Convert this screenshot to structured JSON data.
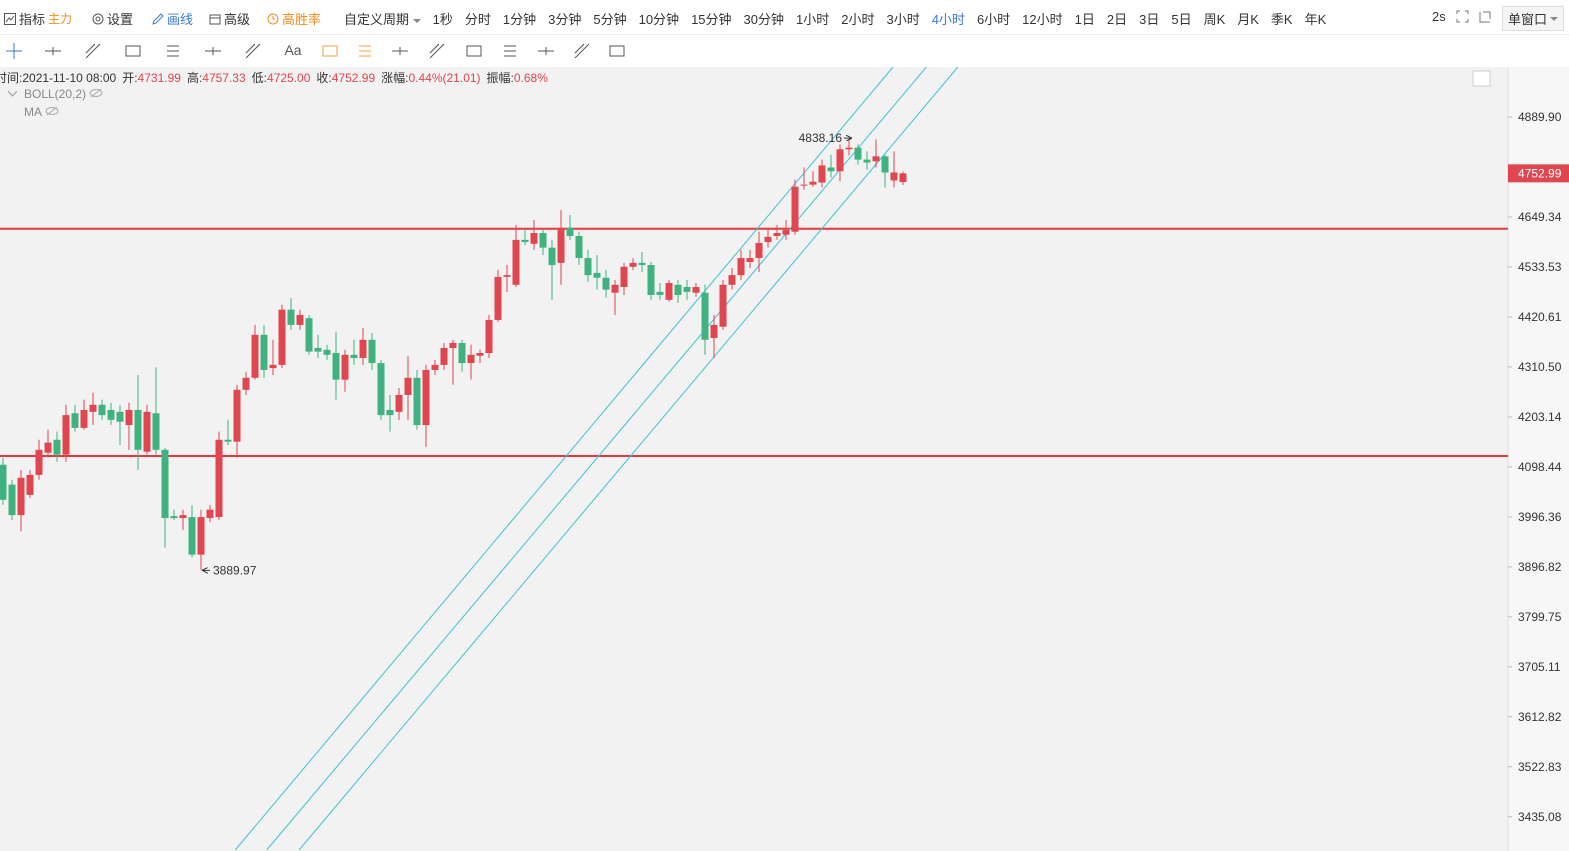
{
  "toolbar": {
    "indicator": "指标",
    "main": "主力",
    "settings": "设置",
    "draw": "画线",
    "advanced": "高级",
    "win_rate": "高胜率",
    "custom_period": "自定义周期",
    "periods": [
      "1秒",
      "分时",
      "1分钟",
      "3分钟",
      "5分钟",
      "10分钟",
      "15分钟",
      "30分钟",
      "1小时",
      "2小时",
      "3小时",
      "4小时",
      "6小时",
      "12小时",
      "1日",
      "2日",
      "3日",
      "5日",
      "周K",
      "月K",
      "季K",
      "年K"
    ],
    "active_period": "4小时",
    "refresh": "2s",
    "window": "单窗口"
  },
  "drawing_tools": {
    "text_tool": "Aa"
  },
  "info_bar": [
    {
      "label": "时间:",
      "value": "2021-11-10 08:00"
    },
    {
      "label": "开:",
      "value": "4731.99"
    },
    {
      "label": "高:",
      "value": "4757.33"
    },
    {
      "label": "低:",
      "value": "4725.00"
    },
    {
      "label": "收:",
      "value": "4752.99"
    },
    {
      "label": "涨幅:",
      "value": "0.44%(21.01)"
    },
    {
      "label": "振幅:",
      "value": "0.68%"
    }
  ],
  "indicators": [
    "BOLL(20,2)",
    "MA"
  ],
  "chart_data": {
    "type": "candlestick",
    "log_scale": true,
    "up_color": "#e0464f",
    "down_color": "#3fb27f",
    "open": [
      4103,
      4062,
      4000,
      4041,
      4082,
      4128,
      4155,
      4124,
      4211,
      4180,
      4214,
      4229,
      4218,
      4214,
      4186,
      4218,
      4130,
      4211,
      4134,
      3998,
      3994,
      3996,
      3921,
      3994,
      3996,
      4155,
      4151,
      4261,
      4287,
      4381,
      4308,
      4315,
      4437,
      4403,
      4418,
      4352,
      4348,
      4341,
      4283,
      4337,
      4330,
      4370,
      4319,
      4218,
      4214,
      4250,
      4287,
      4186,
      4304,
      4315,
      4352,
      4363,
      4319,
      4335,
      4341,
      4414,
      4511,
      4493,
      4596,
      4587,
      4612,
      4578,
      4543,
      4624,
      4605,
      4554,
      4520,
      4509,
      4475,
      4488,
      4534,
      4543,
      4538,
      4477,
      4459,
      4493,
      4488,
      4475,
      4475,
      4374,
      4399,
      4493,
      4515,
      4545,
      4554,
      4591,
      4605,
      4608,
      4615,
      4724,
      4726,
      4731,
      4767,
      4758,
      4811,
      4815,
      4786,
      4782,
      4794,
      4736,
      4731.99
    ],
    "close": [
      4031,
      4000,
      4076,
      4082,
      4134,
      4149,
      4124,
      4207,
      4180,
      4218,
      4229,
      4207,
      4197,
      4193,
      4218,
      4134,
      4214,
      4134,
      3994,
      3994,
      4000,
      3921,
      3996,
      4011,
      4155,
      4151,
      4261,
      4287,
      4381,
      4304,
      4315,
      4437,
      4403,
      4425,
      4344,
      4344,
      4337,
      4283,
      4337,
      4330,
      4370,
      4319,
      4207,
      4207,
      4250,
      4287,
      4186,
      4304,
      4315,
      4352,
      4363,
      4319,
      4337,
      4341,
      4414,
      4511,
      4515,
      4596,
      4591,
      4612,
      4578,
      4538,
      4624,
      4605,
      4554,
      4515,
      4509,
      4482,
      4493,
      4534,
      4543,
      4538,
      4470,
      4470,
      4497,
      4470,
      4477,
      4488,
      4370,
      4403,
      4493,
      4515,
      4554,
      4554,
      4589,
      4603,
      4612,
      4619,
      4721,
      4726,
      4733,
      4772,
      4758,
      4811,
      4815,
      4786,
      4779,
      4794,
      4755,
      4755,
      4752.99
    ],
    "high": [
      4117,
      4072,
      4092,
      4092,
      4155,
      4176,
      4172,
      4229,
      4229,
      4240,
      4255,
      4240,
      4233,
      4229,
      4233,
      4293,
      4229,
      4310,
      4138,
      4011,
      4011,
      4020,
      4011,
      4020,
      4172,
      4197,
      4272,
      4300,
      4403,
      4403,
      4370,
      4448,
      4463,
      4437,
      4425,
      4381,
      4359,
      4388,
      4348,
      4370,
      4396,
      4385,
      4326,
      4250,
      4265,
      4334,
      4304,
      4315,
      4326,
      4363,
      4370,
      4370,
      4359,
      4348,
      4425,
      4527,
      4538,
      4631,
      4619,
      4642,
      4619,
      4596,
      4666,
      4654,
      4615,
      4573,
      4561,
      4527,
      4504,
      4543,
      4554,
      4568,
      4545,
      4497,
      4504,
      4504,
      4504,
      4497,
      4493,
      4425,
      4504,
      4531,
      4573,
      4573,
      4615,
      4624,
      4631,
      4642,
      4738,
      4767,
      4758,
      4786,
      4798,
      4823,
      4838.16,
      4823,
      4806,
      4835,
      4798,
      4806,
      4757.33
    ],
    "low": [
      4021,
      3990,
      3967,
      4035,
      4072,
      4118,
      4109,
      4109,
      4172,
      4176,
      4186,
      4197,
      4186,
      4144,
      4134,
      4092,
      4124,
      4124,
      3935,
      3990,
      3970,
      3915,
      3889.97,
      3986,
      3990,
      4144,
      4118,
      4250,
      4283,
      4287,
      4293,
      4308,
      4392,
      4392,
      4337,
      4330,
      4326,
      4240,
      4257,
      4315,
      4315,
      4304,
      4197,
      4172,
      4197,
      4197,
      4176,
      4140,
      4293,
      4304,
      4272,
      4300,
      4283,
      4319,
      4330,
      4410,
      4477,
      4488,
      4584,
      4573,
      4561,
      4459,
      4493,
      4596,
      4538,
      4500,
      4482,
      4464,
      4425,
      4470,
      4527,
      4522,
      4459,
      4459,
      4455,
      4452,
      4459,
      4466,
      4337,
      4330,
      4392,
      4482,
      4504,
      4531,
      4522,
      4578,
      4596,
      4596,
      4608,
      4714,
      4721,
      4719,
      4743,
      4734,
      4796,
      4774,
      4762,
      4767,
      4719,
      4719,
      4725
    ],
    "hlines": [
      4622,
      4121
    ],
    "hline_color": "#e8363f",
    "channel": [
      {
        "x": [
          25.8,
          98.9
        ],
        "y": [
          3378,
          5015
        ]
      },
      {
        "x": [
          29.3,
          102.6
        ],
        "y": [
          3378,
          5015
        ]
      },
      {
        "x": [
          32.9,
          106.1
        ],
        "y": [
          3378,
          5015
        ]
      }
    ],
    "channel_color": "#3cc1d6",
    "ylim": [
      3378,
      5015
    ],
    "yticks": [
      {
        "value": 4889.9,
        "label": "4889.90"
      },
      {
        "value": 4649.34,
        "label": "4649.34"
      },
      {
        "value": 4533.53,
        "label": "4533.53"
      },
      {
        "value": 4420.61,
        "label": "4420.61"
      },
      {
        "value": 4310.5,
        "label": "4310.50"
      },
      {
        "value": 4203.14,
        "label": "4203.14"
      },
      {
        "value": 4098.44,
        "label": "4098.44"
      },
      {
        "value": 3996.36,
        "label": "3996.36"
      },
      {
        "value": 3896.82,
        "label": "3896.82"
      },
      {
        "value": 3799.75,
        "label": "3799.75"
      },
      {
        "value": 3705.11,
        "label": "3705.11"
      },
      {
        "value": 3612.82,
        "label": "3612.82"
      },
      {
        "value": 3522.83,
        "label": "3522.83"
      },
      {
        "value": 3435.08,
        "label": "3435.08"
      }
    ]
  }
}
